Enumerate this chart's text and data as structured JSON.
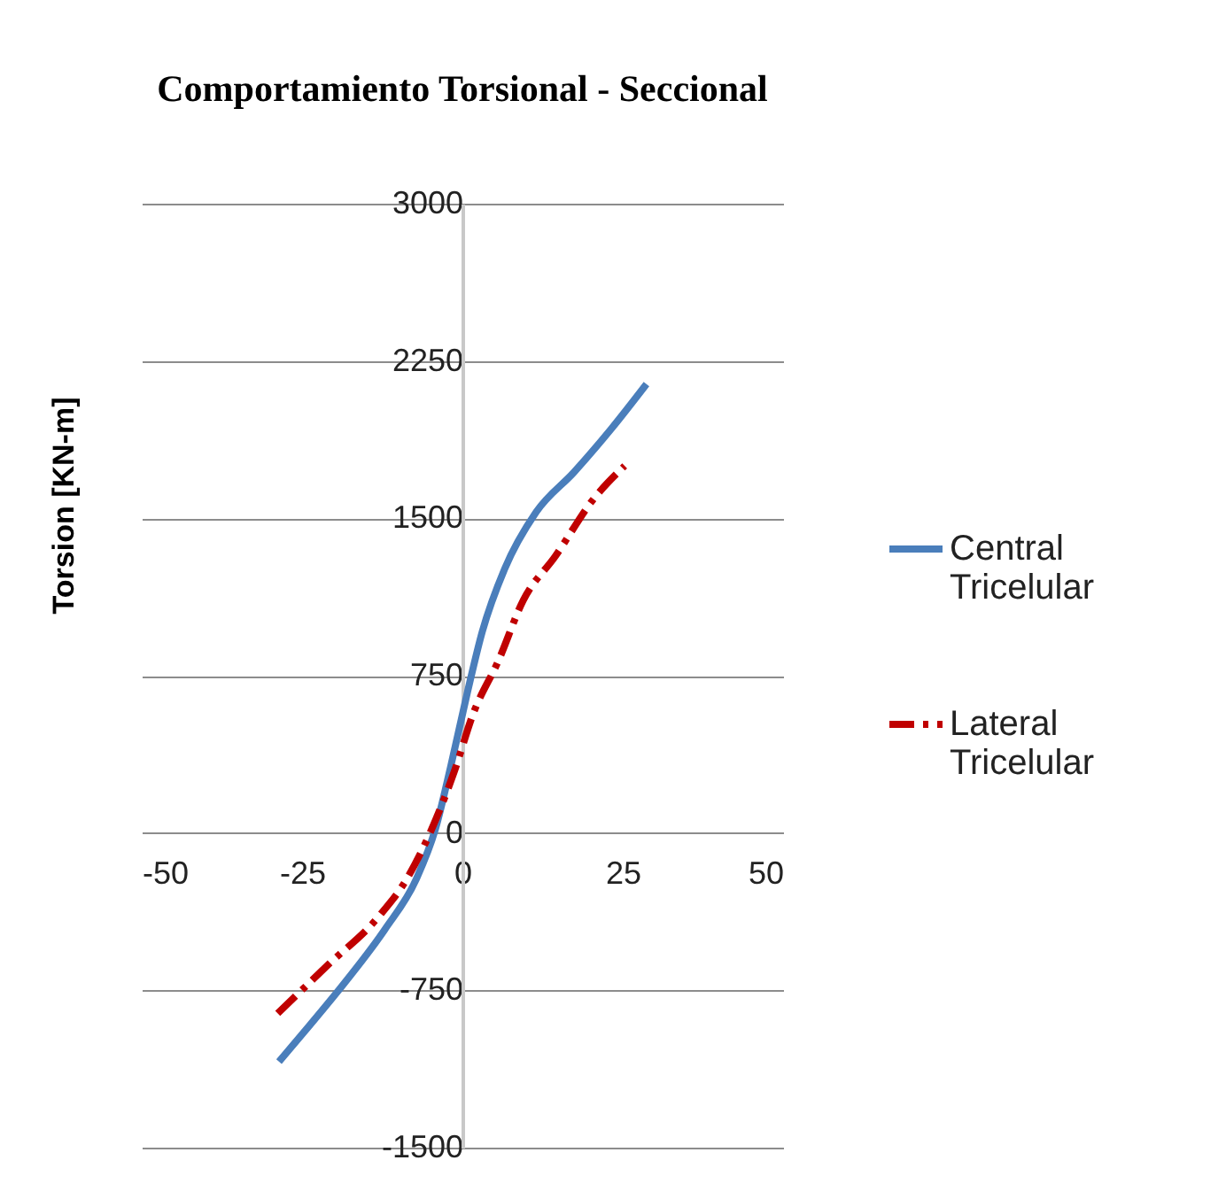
{
  "chart_data": {
    "type": "line",
    "title": "Comportamiento  Torsional - Seccional",
    "ylabel": "Torsion  [KN-m]",
    "xlim": [
      -50,
      50
    ],
    "xticks": [
      -50,
      -25,
      0,
      25,
      50
    ],
    "ylim": [
      -1500,
      3000
    ],
    "yticks": [
      -1500,
      -750,
      0,
      750,
      1500,
      2250,
      3000
    ],
    "grid": "y",
    "legend": "right",
    "series": [
      {
        "name": "Central Tricelular",
        "color": "#4a7ebb",
        "line_style": "solid",
        "x": [
          -28.6,
          -23.9,
          -18,
          -12.1,
          -7.2,
          -4.2,
          -1.8,
          0.7,
          3.1,
          6.6,
          11.5,
          17.4,
          23.3,
          28.7
        ],
        "values": [
          -1090,
          -920,
          -700,
          -460,
          -220,
          20,
          320,
          660,
          960,
          1260,
          1530,
          1720,
          1930,
          2140
        ]
      },
      {
        "name": "Lateral Tricelular",
        "color": "#c00000",
        "line_style": "dashed",
        "x": [
          -28.8,
          -21,
          -13.1,
          -8.7,
          -5.2,
          -1.3,
          1.7,
          5.6,
          9.5,
          14.5,
          20.4,
          25.3
        ],
        "values": [
          -860,
          -630,
          -400,
          -220,
          -10,
          290,
          570,
          820,
          1110,
          1320,
          1590,
          1750
        ]
      }
    ]
  }
}
